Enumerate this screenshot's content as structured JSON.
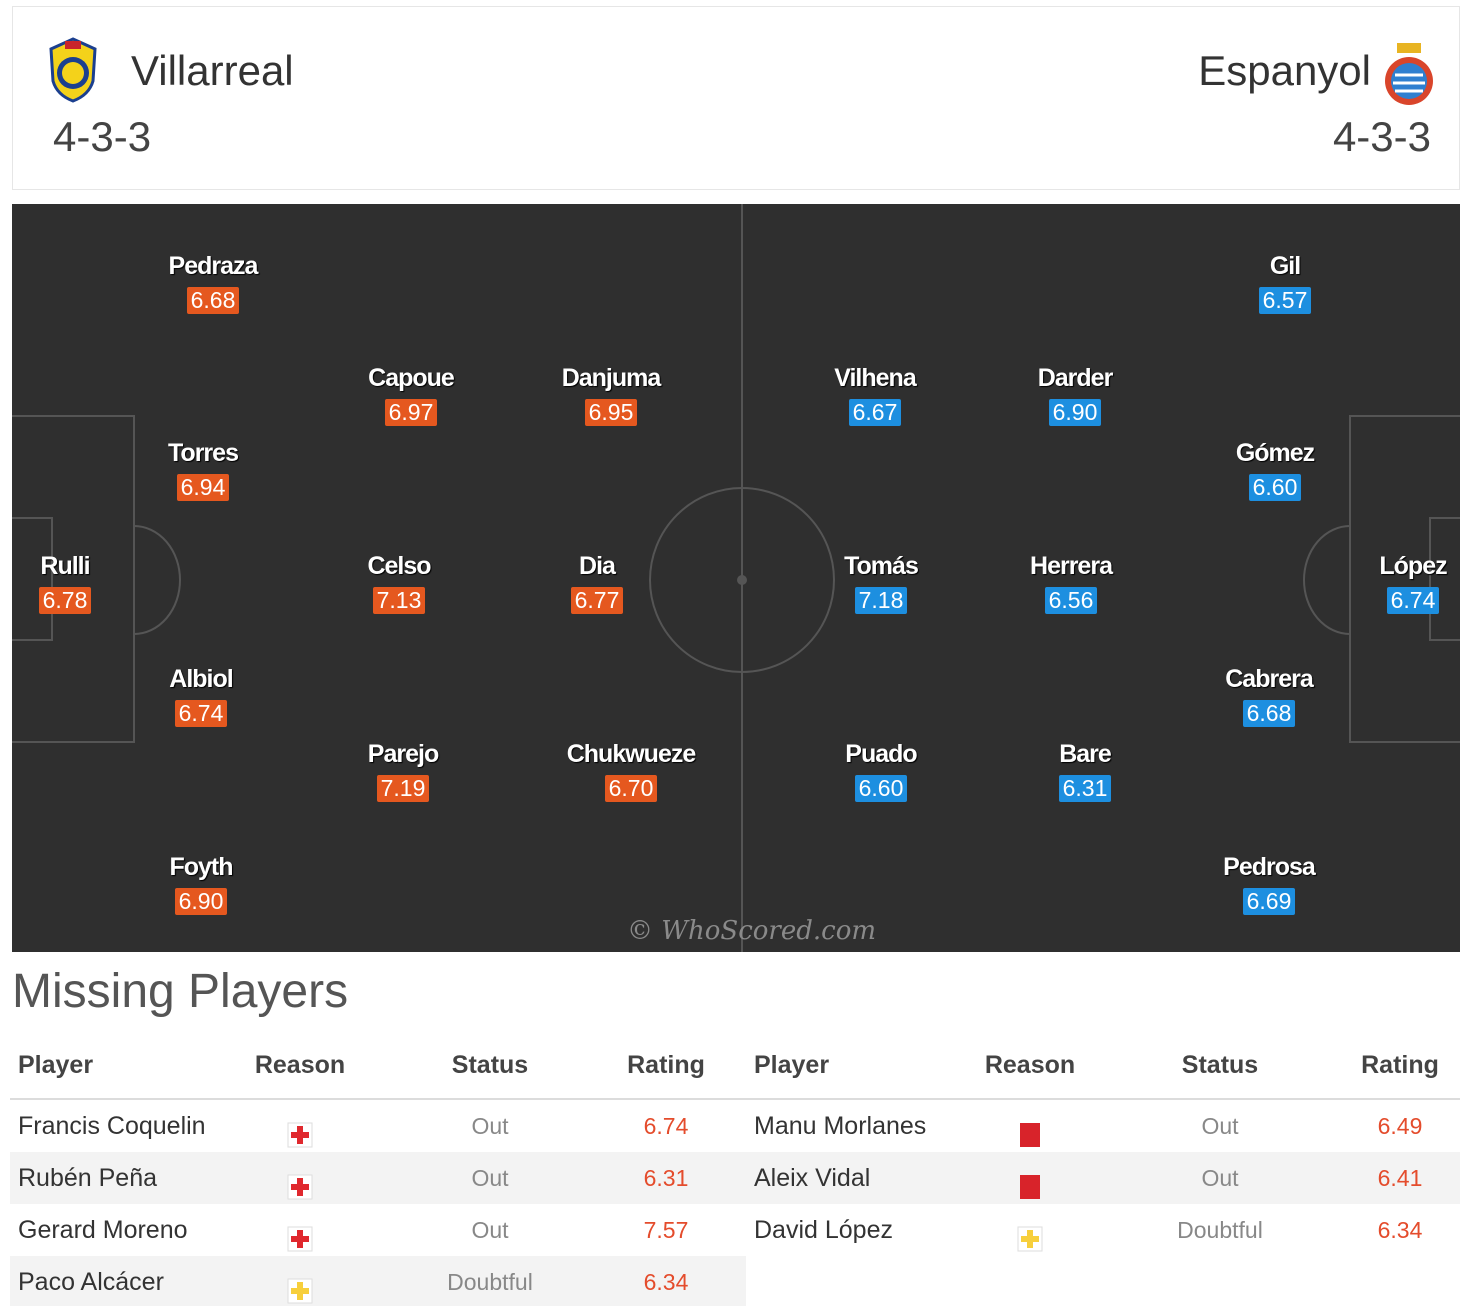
{
  "home": {
    "name": "Villarreal",
    "formation": "4-3-3",
    "crest_icon": "villarreal-crest-icon",
    "color": "#e5581f",
    "players": [
      {
        "name": "Pedraza",
        "rating": "6.68"
      },
      {
        "name": "Capoue",
        "rating": "6.97"
      },
      {
        "name": "Danjuma",
        "rating": "6.95"
      },
      {
        "name": "Torres",
        "rating": "6.94"
      },
      {
        "name": "Rulli",
        "rating": "6.78"
      },
      {
        "name": "Celso",
        "rating": "7.13"
      },
      {
        "name": "Dia",
        "rating": "6.77"
      },
      {
        "name": "Albiol",
        "rating": "6.74"
      },
      {
        "name": "Parejo",
        "rating": "7.19"
      },
      {
        "name": "Chukwueze",
        "rating": "6.70"
      },
      {
        "name": "Foyth",
        "rating": "6.90"
      }
    ]
  },
  "away": {
    "name": "Espanyol",
    "formation": "4-3-3",
    "crest_icon": "espanyol-crest-icon",
    "color": "#1d8fe0",
    "players": [
      {
        "name": "Gil",
        "rating": "6.57"
      },
      {
        "name": "Vilhena",
        "rating": "6.67"
      },
      {
        "name": "Darder",
        "rating": "6.90"
      },
      {
        "name": "Gómez",
        "rating": "6.60"
      },
      {
        "name": "Tomás",
        "rating": "7.18"
      },
      {
        "name": "Herrera",
        "rating": "6.56"
      },
      {
        "name": "López",
        "rating": "6.74"
      },
      {
        "name": "Cabrera",
        "rating": "6.68"
      },
      {
        "name": "Puado",
        "rating": "6.60"
      },
      {
        "name": "Bare",
        "rating": "6.31"
      },
      {
        "name": "Pedrosa",
        "rating": "6.69"
      }
    ]
  },
  "watermark": "© WhoScored.com",
  "missing": {
    "title": "Missing Players",
    "headers": {
      "player": "Player",
      "reason": "Reason",
      "status": "Status",
      "rating": "Rating"
    },
    "home": [
      {
        "player": "Francis Coquelin",
        "reason_icon": "injury-icon",
        "status": "Out",
        "rating": "6.74"
      },
      {
        "player": "Rubén Peña",
        "reason_icon": "injury-icon",
        "status": "Out",
        "rating": "6.31"
      },
      {
        "player": "Gerard Moreno",
        "reason_icon": "injury-icon",
        "status": "Out",
        "rating": "7.57"
      },
      {
        "player": "Paco Alcácer",
        "reason_icon": "doubtful-icon",
        "status": "Doubtful",
        "rating": "6.34"
      }
    ],
    "away": [
      {
        "player": "Manu Morlanes",
        "reason_icon": "red-card-icon",
        "status": "Out",
        "rating": "6.49"
      },
      {
        "player": "Aleix Vidal",
        "reason_icon": "red-card-icon",
        "status": "Out",
        "rating": "6.41"
      },
      {
        "player": "David López",
        "reason_icon": "doubtful-icon",
        "status": "Doubtful",
        "rating": "6.34"
      }
    ]
  }
}
